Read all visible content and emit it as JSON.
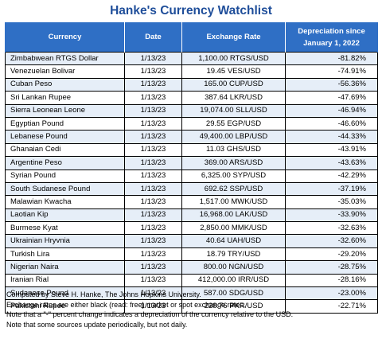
{
  "title": "Hanke's Currency Watchlist",
  "headers": {
    "currency": "Currency",
    "date": "Date",
    "rate": "Exchange Rate",
    "dep_line1": "Depreciation since",
    "dep_line2": "January 1, 2022"
  },
  "rows": [
    {
      "currency": "Zimbabwean RTGS Dollar",
      "date": "1/13/23",
      "rate": "1,100.00 RTGS/USD",
      "dep": "-81.82%"
    },
    {
      "currency": "Venezuelan Bolivar",
      "date": "1/13/23",
      "rate": "19.45 VES/USD",
      "dep": "-74.91%"
    },
    {
      "currency": "Cuban Peso",
      "date": "1/13/23",
      "rate": "165.00 CUP/USD",
      "dep": "-56.36%"
    },
    {
      "currency": "Sri Lankan Rupee",
      "date": "1/13/23",
      "rate": "387.64 LKR/USD",
      "dep": "-47.69%"
    },
    {
      "currency": "Sierra Leonean Leone",
      "date": "1/13/23",
      "rate": "19,074.00 SLL/USD",
      "dep": "-46.94%"
    },
    {
      "currency": "Egyptian Pound",
      "date": "1/13/23",
      "rate": "29.55 EGP/USD",
      "dep": "-46.60%"
    },
    {
      "currency": "Lebanese Pound",
      "date": "1/13/23",
      "rate": "49,400.00 LBP/USD",
      "dep": "-44.33%"
    },
    {
      "currency": "Ghanaian Cedi",
      "date": "1/13/23",
      "rate": "11.03 GHS/USD",
      "dep": "-43.91%"
    },
    {
      "currency": "Argentine Peso",
      "date": "1/13/23",
      "rate": "369.00 ARS/USD",
      "dep": "-43.63%"
    },
    {
      "currency": "Syrian Pound",
      "date": "1/13/23",
      "rate": "6,325.00 SYP/USD",
      "dep": "-42.29%"
    },
    {
      "currency": "South Sudanese Pound",
      "date": "1/13/23",
      "rate": "692.62 SSP/USD",
      "dep": "-37.19%"
    },
    {
      "currency": "Malawian Kwacha",
      "date": "1/13/23",
      "rate": "1,517.00 MWK/USD",
      "dep": "-35.03%"
    },
    {
      "currency": "Laotian Kip",
      "date": "1/13/23",
      "rate": "16,968.00 LAK/USD",
      "dep": "-33.90%"
    },
    {
      "currency": "Burmese Kyat",
      "date": "1/13/23",
      "rate": "2,850.00 MMK/USD",
      "dep": "-32.63%"
    },
    {
      "currency": "Ukrainian Hryvnia",
      "date": "1/13/23",
      "rate": "40.64 UAH/USD",
      "dep": "-32.60%"
    },
    {
      "currency": "Turkish Lira",
      "date": "1/13/23",
      "rate": "18.79 TRY/USD",
      "dep": "-29.20%"
    },
    {
      "currency": "Nigerian Naira",
      "date": "1/13/23",
      "rate": "800.00 NGN/USD",
      "dep": "-28.75%"
    },
    {
      "currency": "Iranian Rial",
      "date": "1/13/23",
      "rate": "412,000.00 IRR/USD",
      "dep": "-28.16%"
    },
    {
      "currency": "Sudanese Pound",
      "date": "1/13/23",
      "rate": "587.00 SDG/USD",
      "dep": "-23.00%"
    },
    {
      "currency": "Pakistani Rupee",
      "date": "1/13/23",
      "rate": "228.76 PKR/USD",
      "dep": "-22.71%"
    }
  ],
  "notes": [
    "Computed by Steve H. Hanke, The Johns Hopkins University.",
    "Exchange rates are either black (read: free) market or spot exchange rates.",
    "Note that a \"-\" percent change indicates a depreciation of the currency relative to the USD.",
    "Note that some sources update periodically, but not daily."
  ],
  "colors": {
    "title": "#1f4e9a",
    "header_bg": "#2f6fc5",
    "row_alt_bg": "#e6eef8"
  }
}
